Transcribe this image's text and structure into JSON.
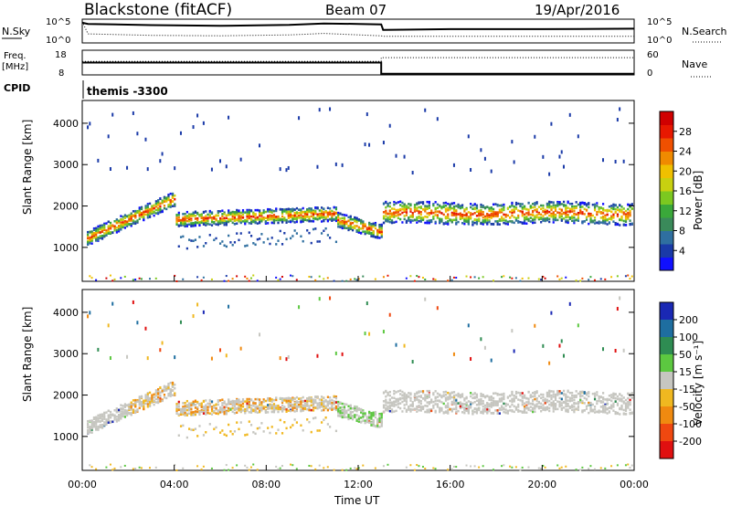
{
  "header": {
    "station": "Blackstone (fitACF)",
    "beam": "Beam 07",
    "date": "19/Apr/2016"
  },
  "chart_data": [
    {
      "type": "line",
      "panel": "noise",
      "left_label": "N.Sky",
      "right_label": "N.Search",
      "left_ticks": [
        "10^5",
        "10^0"
      ],
      "right_ticks": [
        "10^5",
        "10^0"
      ],
      "series": [
        {
          "name": "N.Sky",
          "style": "solid",
          "x": [
            "00:00",
            "00:15",
            "03:00",
            "06:00",
            "09:00",
            "10:30",
            "12:00",
            "13:00",
            "13:05",
            "16:00",
            "20:00",
            "24:00"
          ],
          "y_frac": [
            0.15,
            0.2,
            0.25,
            0.28,
            0.24,
            0.18,
            0.2,
            0.22,
            0.45,
            0.42,
            0.42,
            0.4
          ]
        },
        {
          "name": "N.Search",
          "style": "dotted",
          "x": [
            "00:00",
            "00:15",
            "03:00",
            "06:00",
            "09:00",
            "10:30",
            "12:00",
            "13:00",
            "13:05",
            "16:00",
            "20:00",
            "24:00"
          ],
          "y_frac": [
            0.1,
            0.62,
            0.68,
            0.7,
            0.66,
            0.6,
            0.66,
            0.7,
            0.72,
            0.72,
            0.72,
            0.72
          ]
        }
      ]
    },
    {
      "type": "line",
      "panel": "frequency",
      "left_label": "Freq.",
      "left_unit": "[MHz]",
      "right_label": "Nave",
      "left_ticks": [
        "18",
        "8"
      ],
      "right_ticks": [
        "60",
        "0"
      ],
      "cpid_label": "CPID",
      "cpid_text": "themis -3300",
      "series": [
        {
          "name": "Freq.",
          "style": "solid",
          "x": [
            "00:00",
            "13:00",
            "13:00",
            "24:00"
          ],
          "y_frac": [
            0.5,
            0.5,
            0.95,
            0.95
          ]
        },
        {
          "name": "Nave",
          "style": "dotted",
          "x": [
            "00:00",
            "13:00",
            "13:00",
            "24:00"
          ],
          "y_frac": [
            0.45,
            0.45,
            0.3,
            0.3
          ]
        }
      ]
    },
    {
      "type": "heatmap",
      "panel": "power",
      "ylabel": "Slant Range [km]",
      "yticks": [
        1000,
        2000,
        3000,
        4000
      ],
      "ylim": [
        180,
        4550
      ],
      "colorbar": {
        "label": "Power [dB]",
        "ticks": [
          4,
          8,
          12,
          16,
          20,
          24,
          28
        ],
        "range": [
          0,
          32
        ],
        "colors": [
          "#1010ff",
          "#1a3aa8",
          "#2f6fa0",
          "#3a8a5a",
          "#3aa83a",
          "#7cc820",
          "#c8d010",
          "#f0c000",
          "#f08a00",
          "#f05000",
          "#e81800",
          "#d00000"
        ]
      }
    },
    {
      "type": "heatmap",
      "panel": "velocity",
      "ylabel": "Slant Range [km]",
      "xlabel": "Time UT",
      "xticks": [
        "00:00",
        "04:00",
        "08:00",
        "12:00",
        "16:00",
        "20:00",
        "00:00"
      ],
      "yticks": [
        1000,
        2000,
        3000,
        4000
      ],
      "ylim": [
        180,
        4550
      ],
      "colorbar": {
        "label": "Velocity [m s⁻¹]",
        "ticks": [
          200,
          100,
          50,
          15,
          -15,
          -50,
          -100,
          -200
        ],
        "colors": [
          "#1a28b4",
          "#1e6ea0",
          "#2e8c52",
          "#5cc840",
          "#c6c6c0",
          "#f0b820",
          "#f08a10",
          "#f04810",
          "#e01010"
        ]
      }
    }
  ]
}
